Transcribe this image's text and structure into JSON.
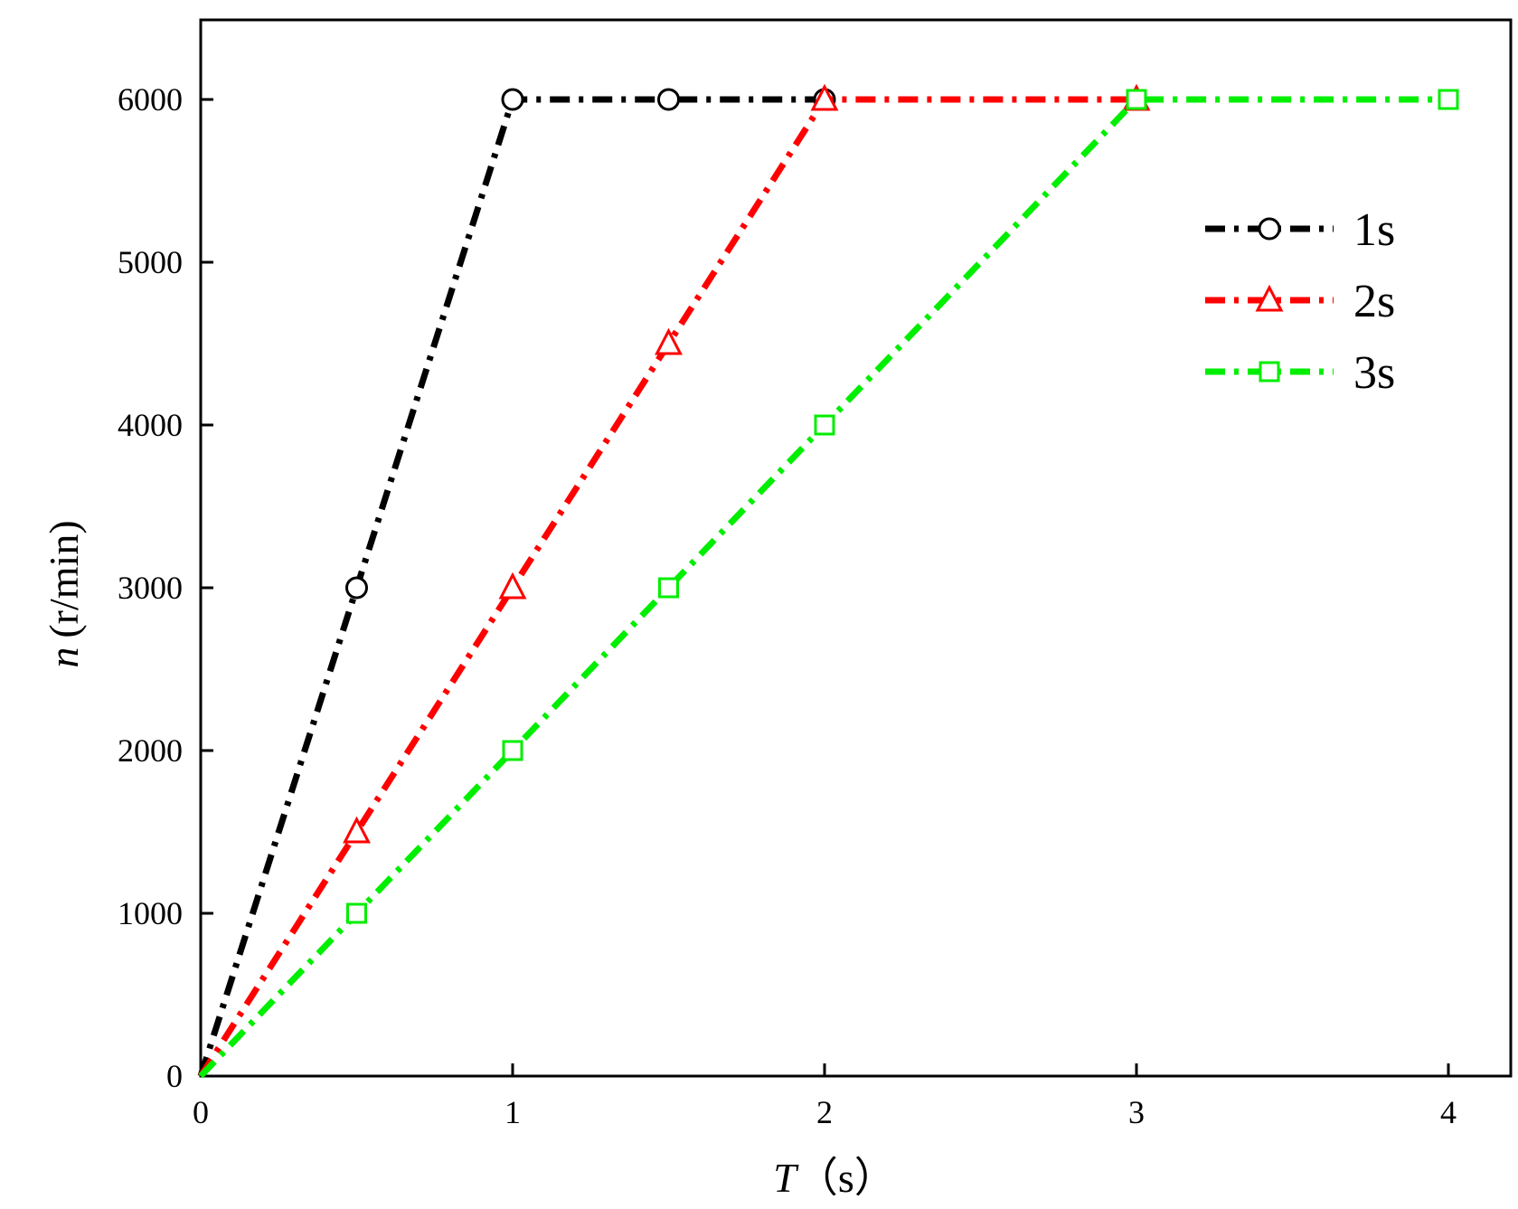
{
  "chart_data": {
    "type": "line",
    "xlabel": {
      "var": "T",
      "unit": "（s）"
    },
    "ylabel": {
      "var": "n",
      "unit": "(r/min)"
    },
    "xlim": [
      0,
      4.2
    ],
    "ylim": [
      0,
      6000
    ],
    "xticks": [
      0,
      1,
      2,
      3,
      4
    ],
    "yticks": [
      0,
      1000,
      2000,
      3000,
      4000,
      5000,
      6000
    ],
    "grid": false,
    "legend_position": "top-right",
    "series": [
      {
        "name": "1s",
        "color": "#000000",
        "marker": "circle",
        "x": [
          0,
          0.5,
          1,
          1.5,
          2
        ],
        "y": [
          0,
          3000,
          6000,
          6000,
          6000
        ]
      },
      {
        "name": "2s",
        "color": "#ff0000",
        "marker": "triangle",
        "x": [
          0,
          0.5,
          1,
          1.5,
          2,
          3
        ],
        "y": [
          0,
          1500,
          3000,
          4500,
          6000,
          6000
        ]
      },
      {
        "name": "3s",
        "color": "#00ee00",
        "marker": "square",
        "x": [
          0,
          0.5,
          1,
          1.5,
          2,
          3,
          4
        ],
        "y": [
          0,
          1000,
          2000,
          3000,
          4000,
          6000,
          6000
        ]
      }
    ]
  }
}
